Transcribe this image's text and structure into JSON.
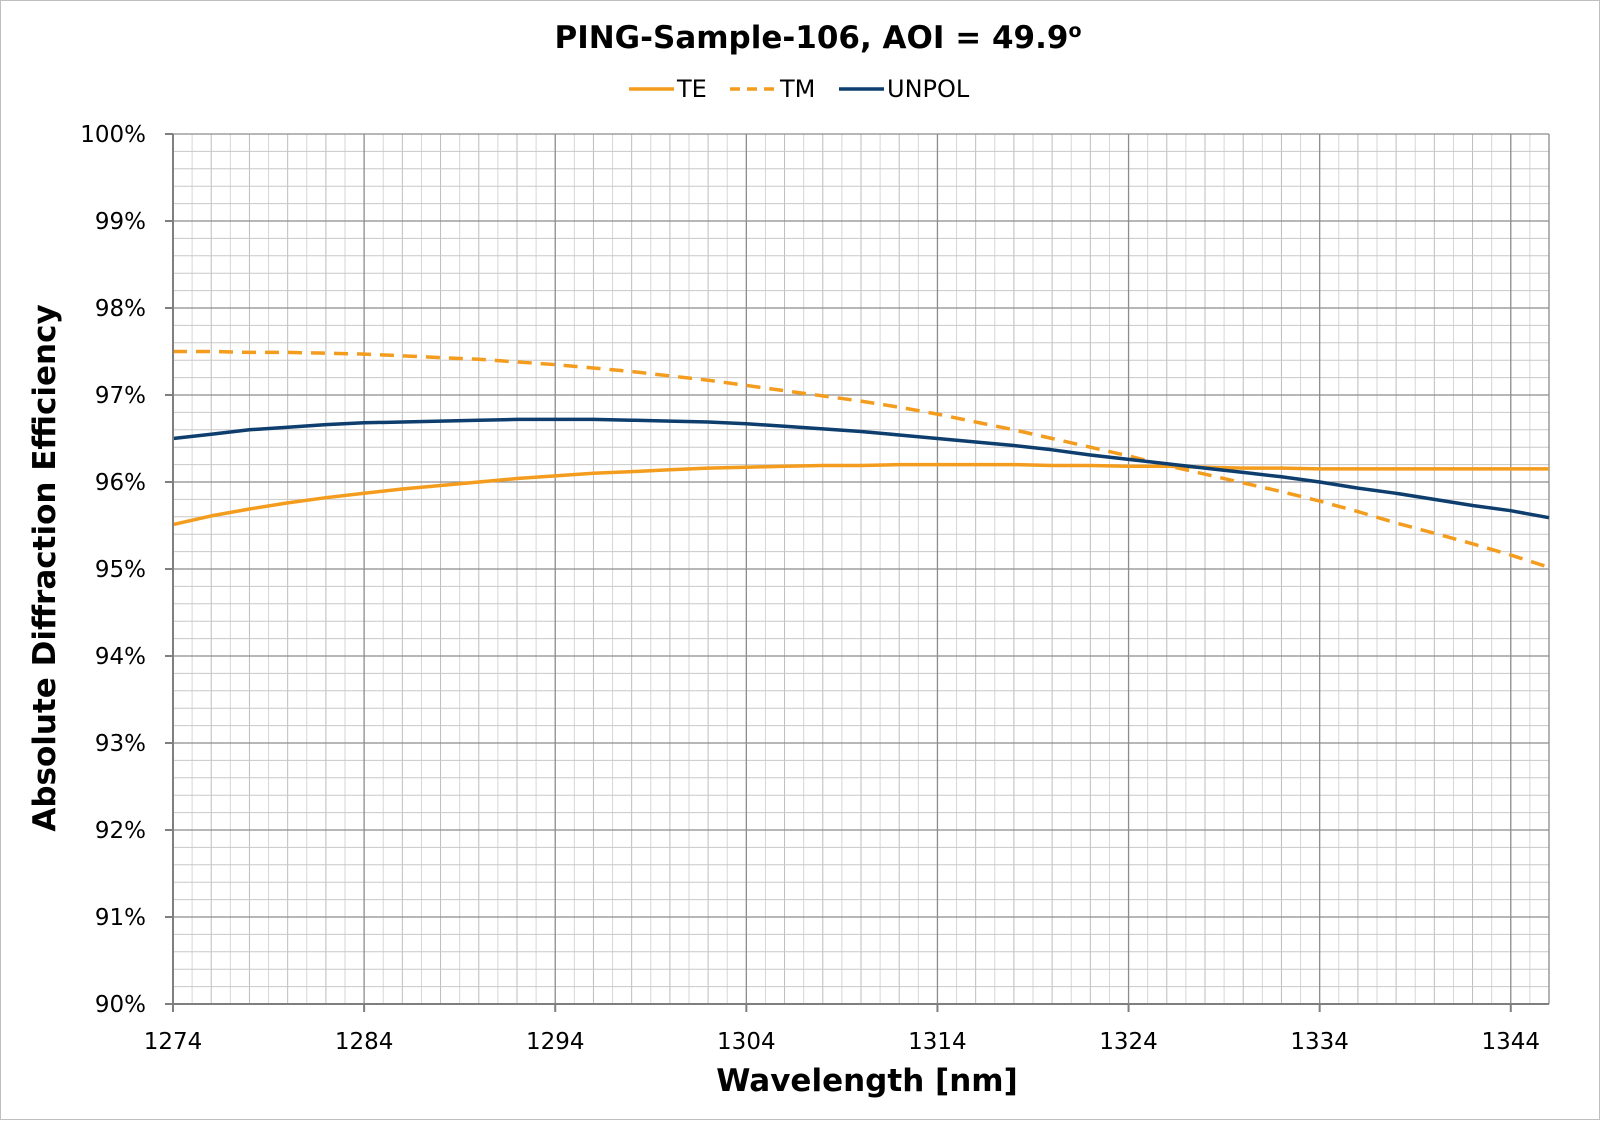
{
  "chart_data": {
    "type": "line",
    "title": "PING-Sample-106, AOI = 49.9",
    "title_superscript": "o",
    "xlabel": "Wavelength [nm]",
    "ylabel": "Absolute Diffraction Efficiency",
    "xlim": [
      1274,
      1346
    ],
    "ylim": [
      90,
      100
    ],
    "x_ticks": [
      1274,
      1284,
      1294,
      1304,
      1314,
      1324,
      1334,
      1344
    ],
    "x_tick_labels": [
      "1274",
      "1284",
      "1294",
      "1304",
      "1314",
      "1324",
      "1334",
      "1344"
    ],
    "y_ticks": [
      90,
      91,
      92,
      93,
      94,
      95,
      96,
      97,
      98,
      99,
      100
    ],
    "y_tick_labels": [
      "90%",
      "91%",
      "92%",
      "93%",
      "94%",
      "95%",
      "96%",
      "97%",
      "98%",
      "99%",
      "100%"
    ],
    "grid": true,
    "legend_position": "top-center",
    "x": [
      1274,
      1276,
      1278,
      1280,
      1282,
      1284,
      1286,
      1288,
      1290,
      1292,
      1294,
      1296,
      1298,
      1300,
      1302,
      1304,
      1306,
      1308,
      1310,
      1312,
      1314,
      1316,
      1318,
      1320,
      1322,
      1324,
      1326,
      1328,
      1330,
      1332,
      1334,
      1336,
      1338,
      1340,
      1342,
      1344,
      1346
    ],
    "series": [
      {
        "name": "TE",
        "color": "#f39c1d",
        "style": "solid",
        "values": [
          95.51,
          95.61,
          95.69,
          95.76,
          95.82,
          95.87,
          95.92,
          95.96,
          96.0,
          96.04,
          96.07,
          96.1,
          96.12,
          96.14,
          96.16,
          96.17,
          96.18,
          96.19,
          96.19,
          96.2,
          96.2,
          96.2,
          96.2,
          96.19,
          96.19,
          96.18,
          96.18,
          96.17,
          96.16,
          96.16,
          96.15,
          96.15,
          96.15,
          96.15,
          96.15,
          96.15,
          96.15
        ]
      },
      {
        "name": "TM",
        "color": "#f39c1d",
        "style": "dashed",
        "values": [
          97.5,
          97.5,
          97.49,
          97.49,
          97.48,
          97.47,
          97.45,
          97.43,
          97.41,
          97.38,
          97.35,
          97.31,
          97.27,
          97.22,
          97.17,
          97.11,
          97.05,
          96.99,
          96.93,
          96.86,
          96.78,
          96.69,
          96.6,
          96.5,
          96.4,
          96.3,
          96.19,
          96.09,
          95.99,
          95.89,
          95.78,
          95.66,
          95.53,
          95.41,
          95.29,
          95.16,
          95.02
        ]
      },
      {
        "name": "UNPOL",
        "color": "#0d3e6e",
        "style": "solid",
        "values": [
          96.5,
          96.55,
          96.6,
          96.63,
          96.66,
          96.68,
          96.69,
          96.7,
          96.71,
          96.72,
          96.72,
          96.72,
          96.71,
          96.7,
          96.69,
          96.67,
          96.64,
          96.61,
          96.58,
          96.54,
          96.5,
          96.46,
          96.42,
          96.37,
          96.31,
          96.26,
          96.21,
          96.16,
          96.11,
          96.06,
          96.0,
          95.93,
          95.87,
          95.8,
          95.73,
          95.67,
          95.59
        ]
      }
    ]
  }
}
